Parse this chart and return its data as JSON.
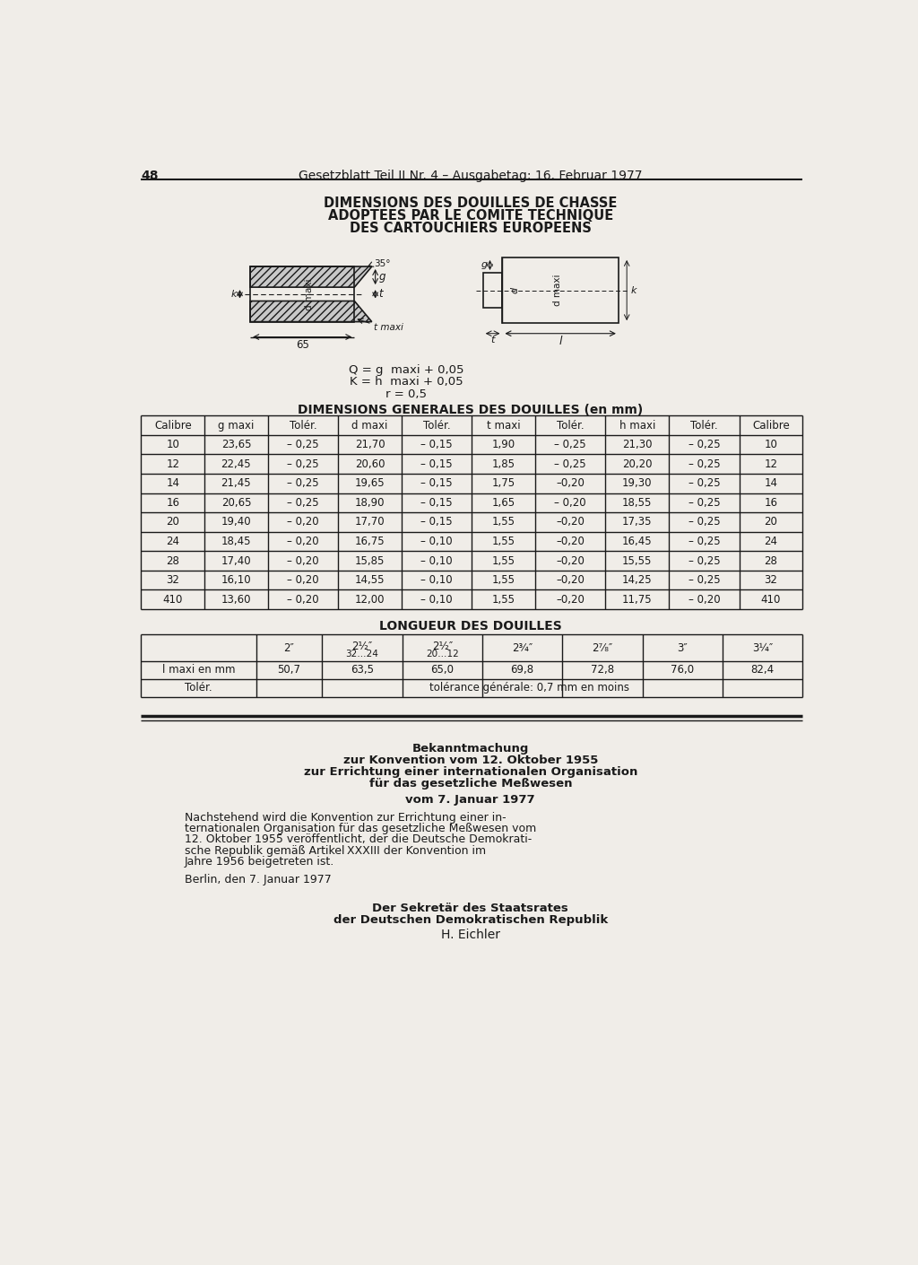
{
  "page_number": "48",
  "header_text": "Gesetzblatt Teil II Nr. 4 – Ausgabetag: 16. Februar 1977",
  "title_line1": "DIMENSIONS DES DOUILLES DE CHASSE",
  "title_line2": "ADOPTEES PAR LE COMITE TECHNIQUE",
  "title_line3": "DES CARTOUCHIERS EUROPEENS",
  "table1_title": "DIMENSIONS GENERALES DES DOUILLES (en mm)",
  "table1_headers": [
    "Calibre",
    "g maxi",
    "Tolér.",
    "d maxi",
    "Tolér.",
    "t maxi",
    "Tolér.",
    "h maxi",
    "Tolér.",
    "Calibre"
  ],
  "table1_rows": [
    [
      "10",
      "23,65",
      "– 0,25",
      "21,70",
      "– 0,15",
      "1,90",
      "– 0,25",
      "21,30",
      "– 0,25",
      "10"
    ],
    [
      "12",
      "22,45",
      "– 0,25",
      "20,60",
      "– 0,15",
      "1,85",
      "– 0,25",
      "20,20",
      "– 0,25",
      "12"
    ],
    [
      "14",
      "21,45",
      "– 0,25",
      "19,65",
      "– 0,15",
      "1,75",
      "–0,20",
      "19,30",
      "– 0,25",
      "14"
    ],
    [
      "16",
      "20,65",
      "– 0,25",
      "18,90",
      "– 0,15",
      "1,65",
      "– 0,20",
      "18,55",
      "– 0,25",
      "16"
    ],
    [
      "20",
      "19,40",
      "– 0,20",
      "17,70",
      "– 0,15",
      "1,55",
      "–0,20",
      "17,35",
      "– 0,25",
      "20"
    ],
    [
      "24",
      "18,45",
      "– 0,20",
      "16,75",
      "– 0,10",
      "1,55",
      "–0,20",
      "16,45",
      "– 0,25",
      "24"
    ],
    [
      "28",
      "17,40",
      "– 0,20",
      "15,85",
      "– 0,10",
      "1,55",
      "–0,20",
      "15,55",
      "– 0,25",
      "28"
    ],
    [
      "32",
      "16,10",
      "– 0,20",
      "14,55",
      "– 0,10",
      "1,55",
      "–0,20",
      "14,25",
      "– 0,25",
      "32"
    ],
    [
      "410",
      "13,60",
      "– 0,20",
      "12,00",
      "– 0,10",
      "1,55",
      "–0,20",
      "11,75",
      "– 0,20",
      "410"
    ]
  ],
  "table2_title": "LONGUEUR DES DOUILLES",
  "table2_headers_line1": [
    "",
    "2″",
    "2½″",
    "2½″",
    "2¾″",
    "2⁷⁄₈″",
    "3″",
    "3¼″"
  ],
  "table2_headers_line2": [
    "",
    "",
    "32…24",
    "20…12",
    "",
    "",
    "",
    ""
  ],
  "table2_row1_label": "l maxi en mm",
  "table2_row1_values": [
    "50,7",
    "63,5",
    "65,0",
    "69,8",
    "72,8",
    "76,0",
    "82,4"
  ],
  "table2_row2_label": "Tolér.",
  "table2_row2_value": "tolérance générale: 0,7 mm en moins",
  "section2_title_bold": "Bekanntmachung",
  "section2_line2_bold": "zur Konvention vom 12. Oktober 1955",
  "section2_line3_bold": "zur Errichtung einer internationalen Organisation",
  "section2_line4_bold": "für das gesetzliche Meßwesen",
  "section2_date_bold": "vom 7. Januar 1977",
  "section2_body": "Nachstehend wird die Konvention zur Errichtung einer in-\nternationalen Organisation für das gesetzliche Meßwesen vom\n12. Oktober 1955 veröffentlicht, der die Deutsche Demokrati-\nsche Republik gemäß Artikel XXXIII der Konvention im\nJahre 1956 beigetreten ist.",
  "section2_berlin": "Berlin, den 7. Januar 1977",
  "section2_sign1": "Der Sekretär des Staatsrates",
  "section2_sign2": "der Deutschen Demokratischen Republik",
  "section2_sign3": "H. Eichler",
  "bg_color": "#f0ede8",
  "line_color": "#1a1a1a",
  "text_color": "#1a1a1a"
}
